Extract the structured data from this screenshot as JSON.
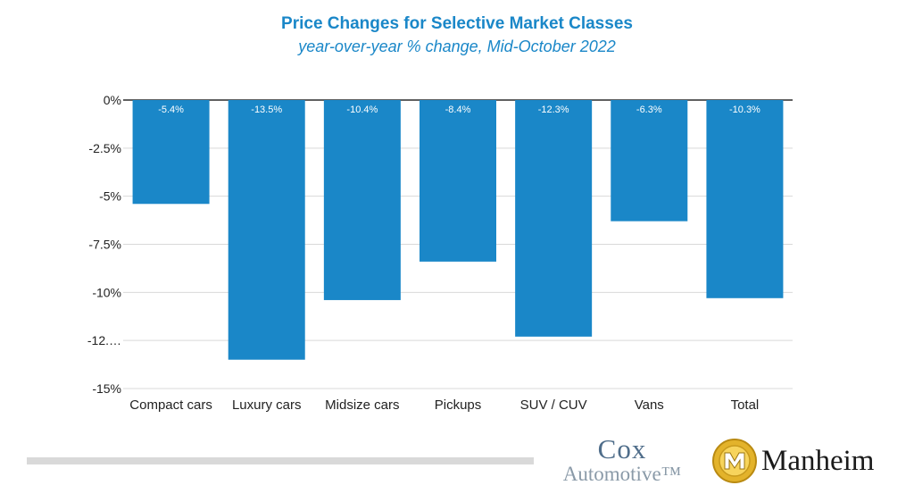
{
  "chart_data": {
    "type": "bar",
    "title": "Price Changes for Selective Market Classes",
    "subtitle": "year-over-year % change, Mid-October 2022",
    "categories": [
      "Compact cars",
      "Luxury cars",
      "Midsize cars",
      "Pickups",
      "SUV / CUV",
      "Vans",
      "Total"
    ],
    "values": [
      -5.4,
      -13.5,
      -10.4,
      -8.4,
      -12.3,
      -6.3,
      -10.3
    ],
    "data_labels": [
      "-5.4%",
      "-13.5%",
      "-10.4%",
      "-8.4%",
      "-12.3%",
      "-6.3%",
      "-10.3%"
    ],
    "y_ticks": [
      0,
      -2.5,
      -5,
      -7.5,
      -10,
      -12.5,
      -15
    ],
    "y_tick_labels": [
      "0%",
      "-2.5%",
      "-5%",
      "-7.5%",
      "-10%",
      "-12.…",
      "-15%"
    ],
    "ylim": [
      -15,
      0
    ],
    "xlabel": "",
    "ylabel": "",
    "grid": true,
    "bar_color": "#1a87c8"
  },
  "branding": {
    "cox_line1": "Cox",
    "cox_line2": "Automotive™",
    "manheim_word": "Manheim"
  }
}
